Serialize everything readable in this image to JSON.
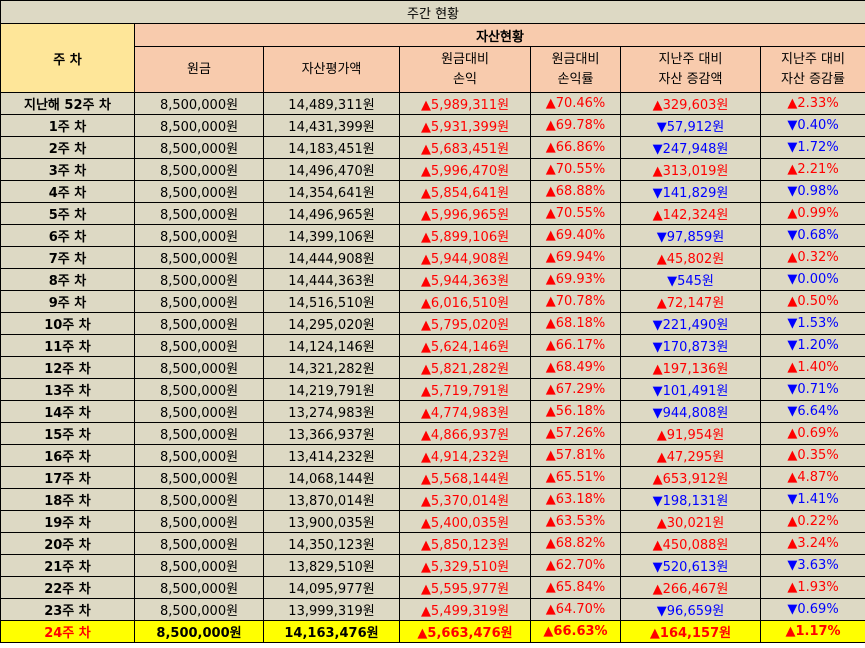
{
  "table_title": "주간 현황",
  "headers": {
    "week": "주 차",
    "group": "자산현황",
    "principal": "원금",
    "asset_value": "자산평가액",
    "pl_line1": "원금대비",
    "pl_line2": "손익",
    "plrate_line1": "원금대비",
    "plrate_line2": "손익률",
    "chg_line1": "지난주 대비",
    "chg_line2": "자산 증감액",
    "chgrate_line1": "지난주 대비",
    "chgrate_line2": "자산 증감률"
  },
  "colors": {
    "up": "#ff0000",
    "down": "#0000ff",
    "highlight": "#ffff00"
  },
  "rows": [
    {
      "week": "지난해 52주 차",
      "principal": "8,500,000원",
      "asset": "14,489,311원",
      "pl": "▲5,989,311원",
      "pl_dir": "up",
      "plrate": "▲70.46%",
      "plrate_dir": "up",
      "chg": "▲329,603원",
      "chg_dir": "up",
      "chgrate": "▲2.33%",
      "chgrate_dir": "up"
    },
    {
      "week": "1주 차",
      "principal": "8,500,000원",
      "asset": "14,431,399원",
      "pl": "▲5,931,399원",
      "pl_dir": "up",
      "plrate": "▲69.78%",
      "plrate_dir": "up",
      "chg": "▼57,912원",
      "chg_dir": "down",
      "chgrate": "▼0.40%",
      "chgrate_dir": "down"
    },
    {
      "week": "2주 차",
      "principal": "8,500,000원",
      "asset": "14,183,451원",
      "pl": "▲5,683,451원",
      "pl_dir": "up",
      "plrate": "▲66.86%",
      "plrate_dir": "up",
      "chg": "▼247,948원",
      "chg_dir": "down",
      "chgrate": "▼1.72%",
      "chgrate_dir": "down"
    },
    {
      "week": "3주 차",
      "principal": "8,500,000원",
      "asset": "14,496,470원",
      "pl": "▲5,996,470원",
      "pl_dir": "up",
      "plrate": "▲70.55%",
      "plrate_dir": "up",
      "chg": "▲313,019원",
      "chg_dir": "up",
      "chgrate": "▲2.21%",
      "chgrate_dir": "up"
    },
    {
      "week": "4주 차",
      "principal": "8,500,000원",
      "asset": "14,354,641원",
      "pl": "▲5,854,641원",
      "pl_dir": "up",
      "plrate": "▲68.88%",
      "plrate_dir": "up",
      "chg": "▼141,829원",
      "chg_dir": "down",
      "chgrate": "▼0.98%",
      "chgrate_dir": "down"
    },
    {
      "week": "5주 차",
      "principal": "8,500,000원",
      "asset": "14,496,965원",
      "pl": "▲5,996,965원",
      "pl_dir": "up",
      "plrate": "▲70.55%",
      "plrate_dir": "up",
      "chg": "▲142,324원",
      "chg_dir": "up",
      "chgrate": "▲0.99%",
      "chgrate_dir": "up"
    },
    {
      "week": "6주 차",
      "principal": "8,500,000원",
      "asset": "14,399,106원",
      "pl": "▲5,899,106원",
      "pl_dir": "up",
      "plrate": "▲69.40%",
      "plrate_dir": "up",
      "chg": "▼97,859원",
      "chg_dir": "down",
      "chgrate": "▼0.68%",
      "chgrate_dir": "down"
    },
    {
      "week": "7주 차",
      "principal": "8,500,000원",
      "asset": "14,444,908원",
      "pl": "▲5,944,908원",
      "pl_dir": "up",
      "plrate": "▲69.94%",
      "plrate_dir": "up",
      "chg": "▲45,802원",
      "chg_dir": "up",
      "chgrate": "▲0.32%",
      "chgrate_dir": "up"
    },
    {
      "week": "8주 차",
      "principal": "8,500,000원",
      "asset": "14,444,363원",
      "pl": "▲5,944,363원",
      "pl_dir": "up",
      "plrate": "▲69.93%",
      "plrate_dir": "up",
      "chg": "▼545원",
      "chg_dir": "down",
      "chgrate": "▼0.00%",
      "chgrate_dir": "down"
    },
    {
      "week": "9주 차",
      "principal": "8,500,000원",
      "asset": "14,516,510원",
      "pl": "▲6,016,510원",
      "pl_dir": "up",
      "plrate": "▲70.78%",
      "plrate_dir": "up",
      "chg": "▲72,147원",
      "chg_dir": "up",
      "chgrate": "▲0.50%",
      "chgrate_dir": "up"
    },
    {
      "week": "10주 차",
      "principal": "8,500,000원",
      "asset": "14,295,020원",
      "pl": "▲5,795,020원",
      "pl_dir": "up",
      "plrate": "▲68.18%",
      "plrate_dir": "up",
      "chg": "▼221,490원",
      "chg_dir": "down",
      "chgrate": "▼1.53%",
      "chgrate_dir": "down"
    },
    {
      "week": "11주 차",
      "principal": "8,500,000원",
      "asset": "14,124,146원",
      "pl": "▲5,624,146원",
      "pl_dir": "up",
      "plrate": "▲66.17%",
      "plrate_dir": "up",
      "chg": "▼170,873원",
      "chg_dir": "down",
      "chgrate": "▼1.20%",
      "chgrate_dir": "down"
    },
    {
      "week": "12주 차",
      "principal": "8,500,000원",
      "asset": "14,321,282원",
      "pl": "▲5,821,282원",
      "pl_dir": "up",
      "plrate": "▲68.49%",
      "plrate_dir": "up",
      "chg": "▲197,136원",
      "chg_dir": "up",
      "chgrate": "▲1.40%",
      "chgrate_dir": "up"
    },
    {
      "week": "13주 차",
      "principal": "8,500,000원",
      "asset": "14,219,791원",
      "pl": "▲5,719,791원",
      "pl_dir": "up",
      "plrate": "▲67.29%",
      "plrate_dir": "up",
      "chg": "▼101,491원",
      "chg_dir": "down",
      "chgrate": "▼0.71%",
      "chgrate_dir": "down"
    },
    {
      "week": "14주 차",
      "principal": "8,500,000원",
      "asset": "13,274,983원",
      "pl": "▲4,774,983원",
      "pl_dir": "up",
      "plrate": "▲56.18%",
      "plrate_dir": "up",
      "chg": "▼944,808원",
      "chg_dir": "down",
      "chgrate": "▼6.64%",
      "chgrate_dir": "down"
    },
    {
      "week": "15주 차",
      "principal": "8,500,000원",
      "asset": "13,366,937원",
      "pl": "▲4,866,937원",
      "pl_dir": "up",
      "plrate": "▲57.26%",
      "plrate_dir": "up",
      "chg": "▲91,954원",
      "chg_dir": "up",
      "chgrate": "▲0.69%",
      "chgrate_dir": "up"
    },
    {
      "week": "16주 차",
      "principal": "8,500,000원",
      "asset": "13,414,232원",
      "pl": "▲4,914,232원",
      "pl_dir": "up",
      "plrate": "▲57.81%",
      "plrate_dir": "up",
      "chg": "▲47,295원",
      "chg_dir": "up",
      "chgrate": "▲0.35%",
      "chgrate_dir": "up"
    },
    {
      "week": "17주 차",
      "principal": "8,500,000원",
      "asset": "14,068,144원",
      "pl": "▲5,568,144원",
      "pl_dir": "up",
      "plrate": "▲65.51%",
      "plrate_dir": "up",
      "chg": "▲653,912원",
      "chg_dir": "up",
      "chgrate": "▲4.87%",
      "chgrate_dir": "up"
    },
    {
      "week": "18주 차",
      "principal": "8,500,000원",
      "asset": "13,870,014원",
      "pl": "▲5,370,014원",
      "pl_dir": "up",
      "plrate": "▲63.18%",
      "plrate_dir": "up",
      "chg": "▼198,131원",
      "chg_dir": "down",
      "chgrate": "▼1.41%",
      "chgrate_dir": "down"
    },
    {
      "week": "19주 차",
      "principal": "8,500,000원",
      "asset": "13,900,035원",
      "pl": "▲5,400,035원",
      "pl_dir": "up",
      "plrate": "▲63.53%",
      "plrate_dir": "up",
      "chg": "▲30,021원",
      "chg_dir": "up",
      "chgrate": "▲0.22%",
      "chgrate_dir": "up"
    },
    {
      "week": "20주 차",
      "principal": "8,500,000원",
      "asset": "14,350,123원",
      "pl": "▲5,850,123원",
      "pl_dir": "up",
      "plrate": "▲68.82%",
      "plrate_dir": "up",
      "chg": "▲450,088원",
      "chg_dir": "up",
      "chgrate": "▲3.24%",
      "chgrate_dir": "up"
    },
    {
      "week": "21주 차",
      "principal": "8,500,000원",
      "asset": "13,829,510원",
      "pl": "▲5,329,510원",
      "pl_dir": "up",
      "plrate": "▲62.70%",
      "plrate_dir": "up",
      "chg": "▼520,613원",
      "chg_dir": "down",
      "chgrate": "▼3.63%",
      "chgrate_dir": "down"
    },
    {
      "week": "22주 차",
      "principal": "8,500,000원",
      "asset": "14,095,977원",
      "pl": "▲5,595,977원",
      "pl_dir": "up",
      "plrate": "▲65.84%",
      "plrate_dir": "up",
      "chg": "▲266,467원",
      "chg_dir": "up",
      "chgrate": "▲1.93%",
      "chgrate_dir": "up"
    },
    {
      "week": "23주 차",
      "principal": "8,500,000원",
      "asset": "13,999,319원",
      "pl": "▲5,499,319원",
      "pl_dir": "up",
      "plrate": "▲64.70%",
      "plrate_dir": "up",
      "chg": "▼96,659원",
      "chg_dir": "down",
      "chgrate": "▼0.69%",
      "chgrate_dir": "down"
    },
    {
      "week": "24주 차",
      "principal": "8,500,000원",
      "asset": "14,163,476원",
      "pl": "▲5,663,476원",
      "pl_dir": "up",
      "plrate": "▲66.63%",
      "plrate_dir": "up",
      "chg": "▲164,157원",
      "chg_dir": "up",
      "chgrate": "▲1.17%",
      "chgrate_dir": "up",
      "highlight": true
    }
  ]
}
